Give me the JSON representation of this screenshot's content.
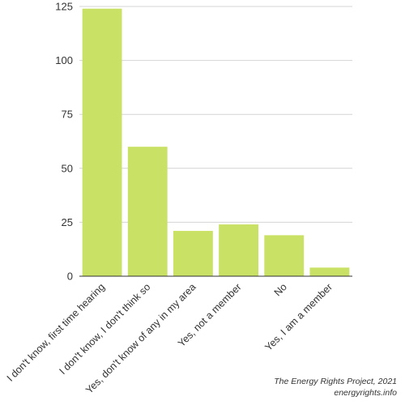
{
  "chart_data": {
    "type": "bar",
    "categories": [
      "I don't know, first time hearing",
      "I don't know, I don't think so",
      "Yes, don't know of any in my area",
      "Yes, not a member",
      "No",
      "Yes, I am a member"
    ],
    "values": [
      124,
      60,
      21,
      24,
      19,
      4
    ],
    "ylim": [
      0,
      125
    ],
    "yticks": [
      0,
      25,
      50,
      75,
      100,
      125
    ],
    "grid": true,
    "bar_color": "#c9e265",
    "grid_color": "#d4d4d4",
    "axis_color": "#333333"
  },
  "credit": {
    "line1": "The Energy Rights Project, 2021",
    "line2": "energyrights.info"
  }
}
